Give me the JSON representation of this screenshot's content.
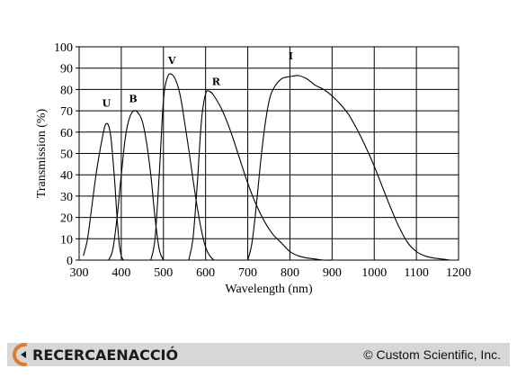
{
  "chart_data": {
    "type": "line",
    "xlabel": "Wavelength (nm)",
    "ylabel": "Transmission (%)",
    "xlim": [
      300,
      1200
    ],
    "ylim": [
      0,
      100
    ],
    "xticks": [
      300,
      400,
      500,
      600,
      700,
      800,
      900,
      1000,
      1100,
      1200
    ],
    "yticks": [
      0,
      10,
      20,
      30,
      40,
      50,
      60,
      70,
      80,
      90,
      100
    ],
    "grid": true,
    "series": [
      {
        "name": "U",
        "label_at": [
          365,
          72
        ],
        "x": [
          310,
          320,
          330,
          340,
          350,
          360,
          365,
          370,
          375,
          380,
          385,
          390,
          395,
          400,
          405
        ],
        "y": [
          2,
          10,
          25,
          40,
          52,
          62,
          64,
          63,
          58,
          48,
          35,
          20,
          8,
          2,
          0
        ]
      },
      {
        "name": "B",
        "label_at": [
          428,
          74
        ],
        "x": [
          370,
          380,
          390,
          400,
          410,
          420,
          430,
          440,
          450,
          460,
          470,
          480,
          490,
          500
        ],
        "y": [
          0,
          5,
          20,
          40,
          58,
          67,
          70,
          69,
          65,
          55,
          40,
          20,
          5,
          0
        ]
      },
      {
        "name": "V",
        "label_at": [
          520,
          92
        ],
        "x": [
          470,
          480,
          490,
          500,
          510,
          520,
          530,
          540,
          550,
          560,
          570,
          580,
          590,
          600,
          610,
          620
        ],
        "y": [
          0,
          10,
          40,
          75,
          86,
          87,
          84,
          77,
          65,
          52,
          38,
          25,
          14,
          6,
          2,
          0
        ]
      },
      {
        "name": "R",
        "label_at": [
          625,
          82
        ],
        "x": [
          560,
          570,
          580,
          590,
          600,
          610,
          620,
          640,
          660,
          680,
          700,
          720,
          740,
          760,
          780,
          800,
          820,
          840,
          860,
          880,
          900
        ],
        "y": [
          0,
          10,
          35,
          65,
          78,
          79,
          77,
          70,
          60,
          48,
          36,
          26,
          18,
          12,
          8,
          4,
          2,
          1,
          0.5,
          0,
          0
        ]
      },
      {
        "name": "I",
        "label_at": [
          802,
          94
        ],
        "x": [
          700,
          710,
          720,
          730,
          740,
          750,
          760,
          780,
          800,
          820,
          840,
          860,
          880,
          900,
          920,
          940,
          960,
          980,
          1000,
          1020,
          1040,
          1060,
          1080,
          1100,
          1120,
          1140,
          1160,
          1180
        ],
        "y": [
          0,
          8,
          25,
          45,
          62,
          74,
          80,
          85,
          86,
          86.5,
          85,
          82,
          80,
          77,
          73,
          68,
          61,
          53,
          44,
          34,
          24,
          15,
          8,
          4,
          2,
          1,
          0.5,
          0
        ]
      }
    ]
  },
  "footer": {
    "brand": "RECERCAENACCIÓ",
    "copyright": "© Custom Scientific, Inc."
  }
}
